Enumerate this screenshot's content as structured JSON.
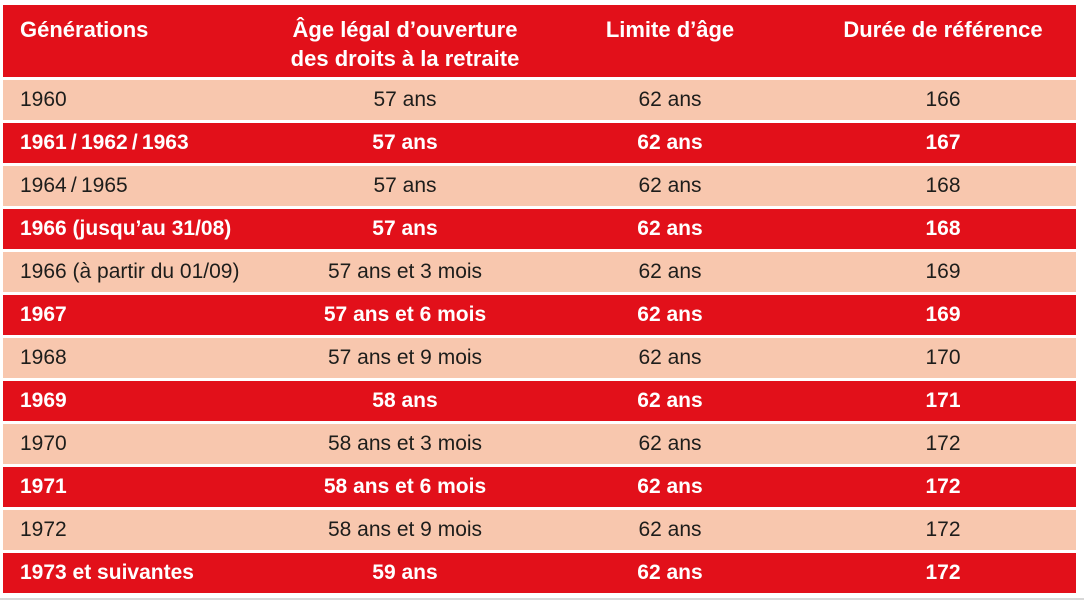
{
  "colors": {
    "header_red": "#e2101a",
    "row_salmon": "#f8c7ae",
    "header_text": "#ffffff",
    "body_text": "#1d1d1b",
    "bottom_rule": "#d8d8d8"
  },
  "chart_data": {
    "type": "table",
    "title": "",
    "columns": [
      {
        "label": "Générations",
        "line1": "Générations",
        "line2": ""
      },
      {
        "label": "Âge légal d’ouverture des droits à la retraite",
        "line1": "Âge légal d’ouverture",
        "line2": "des droits à la retraite"
      },
      {
        "label": "Limite d’âge",
        "line1": "Limite d’âge",
        "line2": ""
      },
      {
        "label": "Durée de référence",
        "line1": "Durée de référence",
        "line2": ""
      }
    ],
    "rows": [
      {
        "generation": "1960",
        "age_legal": "57 ans",
        "limite_age": "62 ans",
        "duree_reference": "166",
        "variant": "light"
      },
      {
        "generation": "1961 / 1962 / 1963",
        "age_legal": "57 ans",
        "limite_age": "62 ans",
        "duree_reference": "167",
        "variant": "dark"
      },
      {
        "generation": "1964 / 1965",
        "age_legal": "57 ans",
        "limite_age": "62 ans",
        "duree_reference": "168",
        "variant": "light"
      },
      {
        "generation": "1966 (jusqu’au 31/08)",
        "age_legal": "57 ans",
        "limite_age": "62 ans",
        "duree_reference": "168",
        "variant": "dark"
      },
      {
        "generation": "1966 (à partir du 01/09)",
        "age_legal": "57 ans et 3 mois",
        "limite_age": "62 ans",
        "duree_reference": "169",
        "variant": "light"
      },
      {
        "generation": "1967",
        "age_legal": "57 ans et 6 mois",
        "limite_age": "62 ans",
        "duree_reference": "169",
        "variant": "dark"
      },
      {
        "generation": "1968",
        "age_legal": "57 ans et 9 mois",
        "limite_age": "62 ans",
        "duree_reference": "170",
        "variant": "light"
      },
      {
        "generation": "1969",
        "age_legal": "58 ans",
        "limite_age": "62 ans",
        "duree_reference": "171",
        "variant": "dark"
      },
      {
        "generation": "1970",
        "age_legal": "58 ans et 3 mois",
        "limite_age": "62 ans",
        "duree_reference": "172",
        "variant": "light"
      },
      {
        "generation": "1971",
        "age_legal": "58 ans et 6 mois",
        "limite_age": "62 ans",
        "duree_reference": "172",
        "variant": "dark"
      },
      {
        "generation": "1972",
        "age_legal": "58 ans et 9 mois",
        "limite_age": "62 ans",
        "duree_reference": "172",
        "variant": "light"
      },
      {
        "generation": "1973 et suivantes",
        "age_legal": "59 ans",
        "limite_age": "62 ans",
        "duree_reference": "172",
        "variant": "dark"
      }
    ]
  }
}
